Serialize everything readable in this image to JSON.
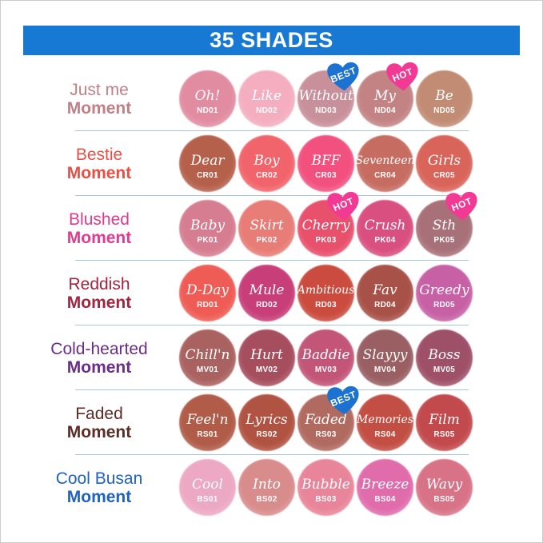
{
  "header": {
    "title": "35 SHADES",
    "bar_color": "#1779D3",
    "text_color": "#FFFFFF"
  },
  "badge_colors": {
    "BEST": "#1B72D0",
    "HOT": "#F23A95"
  },
  "separator_color": "#A9C6D6",
  "rows": [
    {
      "label_line1": "Just me",
      "label_line2": "Moment",
      "label_color": "#C08087",
      "shades": [
        {
          "name": "Oh!",
          "code": "ND01",
          "color": "#E28CA2"
        },
        {
          "name": "Like",
          "code": "ND02",
          "color": "#F4AEC0"
        },
        {
          "name": "Without",
          "code": "ND03",
          "color": "#C8909A",
          "badge": "BEST"
        },
        {
          "name": "My",
          "code": "ND04",
          "color": "#C38384",
          "badge": "HOT"
        },
        {
          "name": "Be",
          "code": "ND05",
          "color": "#C18B74"
        }
      ]
    },
    {
      "label_line1": "Bestie",
      "label_line2": "Moment",
      "label_color": "#E85045",
      "shades": [
        {
          "name": "Dear",
          "code": "CR01",
          "color": "#B5604B"
        },
        {
          "name": "Boy",
          "code": "CR02",
          "color": "#F2646C"
        },
        {
          "name": "BFF",
          "code": "CR03",
          "color": "#F25180"
        },
        {
          "name": "Seventeen",
          "code": "CR04",
          "color": "#C66C60"
        },
        {
          "name": "Girls",
          "code": "CR05",
          "color": "#D96459"
        }
      ]
    },
    {
      "label_line1": "Blushed",
      "label_line2": "Moment",
      "label_color": "#E33A90",
      "shades": [
        {
          "name": "Baby",
          "code": "PK01",
          "color": "#D67D91"
        },
        {
          "name": "Skirt",
          "code": "PK02",
          "color": "#E87C77"
        },
        {
          "name": "Cherry",
          "code": "PK03",
          "color": "#E8506C",
          "badge": "HOT"
        },
        {
          "name": "Crush",
          "code": "PK04",
          "color": "#D94F7F"
        },
        {
          "name": "Sth",
          "code": "PK05",
          "color": "#A87179",
          "badge": "HOT"
        }
      ]
    },
    {
      "label_line1": "Reddish",
      "label_line2": "Moment",
      "label_color": "#A32440",
      "shades": [
        {
          "name": "D-Day",
          "code": "RD01",
          "color": "#EF5C55"
        },
        {
          "name": "Mule",
          "code": "RD02",
          "color": "#C73E78"
        },
        {
          "name": "Ambitious",
          "code": "RD03",
          "color": "#CB4B3E"
        },
        {
          "name": "Fav",
          "code": "RD04",
          "color": "#A85148"
        },
        {
          "name": "Greedy",
          "code": "RD05",
          "color": "#C760A5"
        }
      ]
    },
    {
      "label_line1": "Cold-hearted",
      "label_line2": "Moment",
      "label_color": "#6B2D86",
      "shades": [
        {
          "name": "Chill'n",
          "code": "MV01",
          "color": "#A9625F"
        },
        {
          "name": "Hurt",
          "code": "MV02",
          "color": "#A64E5E"
        },
        {
          "name": "Baddie",
          "code": "MV03",
          "color": "#C25578"
        },
        {
          "name": "Slayyy",
          "code": "MV04",
          "color": "#995F63"
        },
        {
          "name": "Boss",
          "code": "MV05",
          "color": "#9E5069"
        }
      ]
    },
    {
      "label_line1": "Faded",
      "label_line2": "Moment",
      "label_color": "#5C2C26",
      "shades": [
        {
          "name": "Feel'n",
          "code": "RS01",
          "color": "#B05C48"
        },
        {
          "name": "Lyrics",
          "code": "RS02",
          "color": "#B05342"
        },
        {
          "name": "Faded",
          "code": "RS03",
          "color": "#B06A5F",
          "badge": "BEST"
        },
        {
          "name": "Memories",
          "code": "RS04",
          "color": "#C24E44"
        },
        {
          "name": "Film",
          "code": "RS05",
          "color": "#C24A4D"
        }
      ]
    },
    {
      "label_line1": "Cool Busan",
      "label_line2": "Moment",
      "label_color": "#1E62C3",
      "shades": [
        {
          "name": "Cool",
          "code": "BS01",
          "color": "#EDA9C3"
        },
        {
          "name": "Into",
          "code": "BS02",
          "color": "#D98C8C"
        },
        {
          "name": "Bubble",
          "code": "BS03",
          "color": "#E9859A"
        },
        {
          "name": "Breeze",
          "code": "BS04",
          "color": "#E06CAC"
        },
        {
          "name": "Wavy",
          "code": "BS05",
          "color": "#D87287"
        }
      ]
    }
  ]
}
